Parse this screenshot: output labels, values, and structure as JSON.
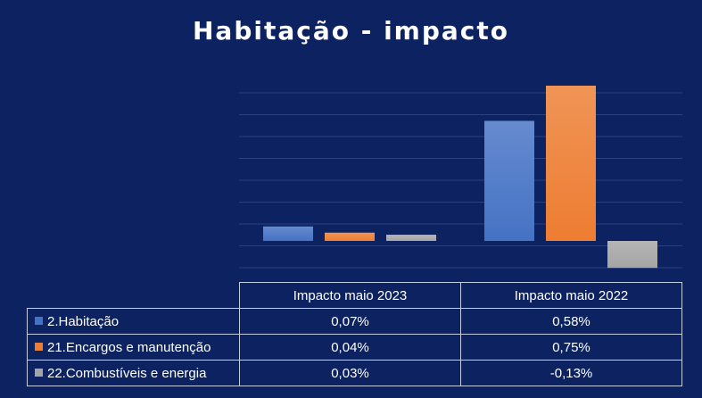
{
  "chart_data": {
    "type": "bar",
    "title": "Habitação - impacto",
    "categories": [
      "Impacto maio 2023",
      "Impacto maio 2022"
    ],
    "series": [
      {
        "name": "2.Habitação",
        "values": [
          0.07,
          0.58
        ],
        "labels": [
          "0,07%",
          "0,58%"
        ],
        "color": "#4472c4"
      },
      {
        "name": "21.Encargos e manutenção",
        "values": [
          0.04,
          0.75
        ],
        "labels": [
          "0,04%",
          "0,75%"
        ],
        "color": "#ed7d31"
      },
      {
        "name": "22.Combustíveis e energia",
        "values": [
          0.03,
          -0.13
        ],
        "labels": [
          "0,03%",
          "-0,13%"
        ],
        "color": "#a5a5a5"
      }
    ],
    "ylim": [
      -0.13,
      0.75
    ],
    "grid": true,
    "legend": "data-table"
  },
  "colors": {
    "background": "#0d2260",
    "gridline": "#2b4281",
    "table_border": "#c7cde0"
  }
}
